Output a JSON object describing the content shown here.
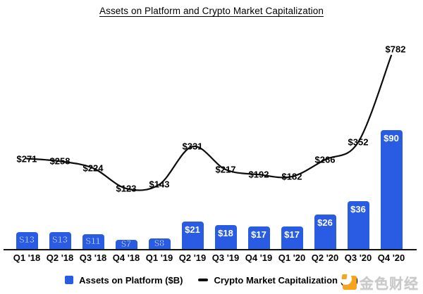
{
  "page": {
    "background": "#ffffff"
  },
  "chart_data": {
    "type": "combo",
    "title": "Assets on Platform and Crypto Market Capitalization",
    "categories": [
      "Q1 '18",
      "Q2 '18",
      "Q3 '18",
      "Q4 '18",
      "Q1 '19",
      "Q2 '19",
      "Q3 '19",
      "Q4 '19",
      "Q1 '20",
      "Q2 '20",
      "Q3 '20",
      "Q4 '20"
    ],
    "series": [
      {
        "name": "Assets on Platform ($B)",
        "type": "bar",
        "color": "#2a5ce3",
        "value_prefix": "$",
        "values": [
          13,
          13,
          11,
          7,
          8,
          21,
          18,
          17,
          17,
          26,
          36,
          90
        ]
      },
      {
        "name": "Crypto Market Capitalization ($B)",
        "type": "line",
        "color": "#0d0d0d",
        "value_prefix": "$",
        "values": [
          271,
          258,
          224,
          123,
          143,
          331,
          217,
          192,
          182,
          266,
          352,
          782
        ]
      }
    ],
    "axes": {
      "x_labels_visible": true,
      "y_axis_visible": false,
      "gridlines": false
    },
    "legend": {
      "position": "bottom"
    },
    "layout_hints": {
      "bar_labels_inside_top": true,
      "line_labels_on_points": true,
      "line_label_offsets": {
        "11": {
          "dx": 6,
          "dy": -9
        }
      }
    }
  },
  "watermark": {
    "text": "金色财经",
    "logo_color": "#f6a41f",
    "text_color": "#c9c9c9"
  }
}
